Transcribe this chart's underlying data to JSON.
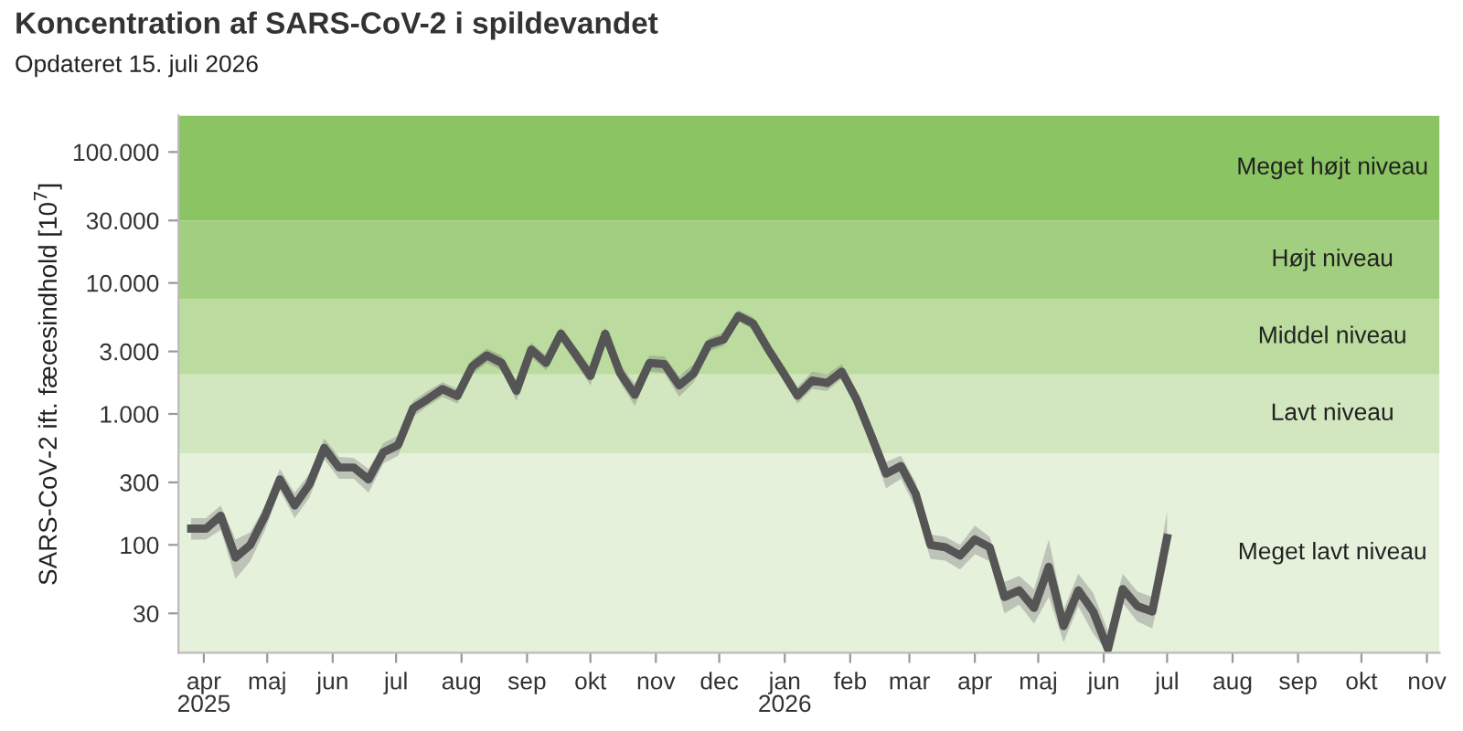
{
  "chart_data": {
    "type": "line",
    "title": "Koncentration af SARS-CoV-2 i spildevandet",
    "subtitle": "Opdateret 15. juli 2026",
    "ylabel": "SARS-CoV-2 ift. fæcesindhold [10$^{7}$]",
    "x": [
      "2025-03-26",
      "2025-04-02",
      "2025-04-09",
      "2025-04-16",
      "2025-04-23",
      "2025-04-30",
      "2025-05-07",
      "2025-05-14",
      "2025-05-21",
      "2025-05-28",
      "2025-06-04",
      "2025-06-11",
      "2025-06-18",
      "2025-06-25",
      "2025-07-02",
      "2025-07-09",
      "2025-07-16",
      "2025-07-23",
      "2025-07-30",
      "2025-08-06",
      "2025-08-13",
      "2025-08-20",
      "2025-08-27",
      "2025-09-03",
      "2025-09-10",
      "2025-09-17",
      "2025-09-24",
      "2025-10-01",
      "2025-10-08",
      "2025-10-15",
      "2025-10-22",
      "2025-10-29",
      "2025-11-05",
      "2025-11-12",
      "2025-11-19",
      "2025-11-26",
      "2025-12-03",
      "2025-12-10",
      "2025-12-17",
      "2025-12-24",
      "2025-12-31",
      "2026-01-07",
      "2026-01-14",
      "2026-01-21",
      "2026-01-28",
      "2026-02-04",
      "2026-02-11",
      "2026-02-18",
      "2026-02-25",
      "2026-03-04",
      "2026-03-11",
      "2026-03-18",
      "2026-03-25",
      "2026-04-01",
      "2026-04-08",
      "2026-04-15",
      "2026-04-22",
      "2026-04-29",
      "2026-05-06",
      "2026-05-13",
      "2026-05-20",
      "2026-05-27",
      "2026-06-03",
      "2026-06-10",
      "2026-06-17",
      "2026-06-24",
      "2026-07-01"
    ],
    "series": [
      {
        "color": "#555555",
        "values": [
          133,
          133,
          167,
          80,
          100,
          167,
          316,
          200,
          290,
          550,
          390,
          390,
          316,
          510,
          580,
          1100,
          1300,
          1550,
          1370,
          2300,
          2800,
          2450,
          1500,
          3100,
          2450,
          4100,
          2850,
          1950,
          4100,
          2050,
          1400,
          2450,
          2400,
          1650,
          2050,
          3400,
          3700,
          5600,
          4900,
          3150,
          2100,
          1380,
          1800,
          1720,
          2100,
          1290,
          680,
          350,
          400,
          245,
          100,
          96,
          83,
          110,
          96,
          40,
          45,
          33,
          68,
          24,
          45,
          31,
          16,
          46,
          34,
          31,
          113
        ],
        "lower": [
          110,
          110,
          130,
          55,
          75,
          130,
          260,
          160,
          230,
          450,
          320,
          320,
          250,
          420,
          480,
          950,
          1150,
          1350,
          1200,
          2000,
          2450,
          2150,
          1250,
          2700,
          2150,
          3600,
          2450,
          1650,
          3600,
          1750,
          1150,
          2100,
          2050,
          1350,
          1750,
          3000,
          3300,
          5100,
          4400,
          2800,
          1850,
          1200,
          1550,
          1500,
          1850,
          1100,
          560,
          270,
          320,
          190,
          78,
          76,
          65,
          85,
          75,
          30,
          35,
          25,
          40,
          18,
          34,
          21,
          15,
          36,
          26,
          23,
          75
        ],
        "upper": [
          160,
          160,
          200,
          110,
          125,
          200,
          380,
          250,
          350,
          650,
          470,
          460,
          380,
          600,
          680,
          1250,
          1500,
          1750,
          1550,
          2600,
          3150,
          2800,
          1800,
          3500,
          2800,
          4600,
          3250,
          2300,
          4600,
          2400,
          1700,
          2800,
          2750,
          1950,
          2400,
          3800,
          4200,
          6200,
          5500,
          3550,
          2400,
          1600,
          2100,
          2000,
          2400,
          1500,
          820,
          430,
          480,
          300,
          120,
          115,
          100,
          140,
          115,
          52,
          58,
          46,
          110,
          32,
          60,
          43,
          22,
          60,
          44,
          40,
          180
        ]
      }
    ],
    "xlim": [
      "2025-03-20",
      "2026-11-07"
    ],
    "xticks": [
      {
        "value": "2025-04-01",
        "label": "apr\n2025"
      },
      {
        "value": "2025-05-01",
        "label": "maj"
      },
      {
        "value": "2025-06-01",
        "label": "jun"
      },
      {
        "value": "2025-07-01",
        "label": "jul"
      },
      {
        "value": "2025-08-01",
        "label": "aug"
      },
      {
        "value": "2025-09-01",
        "label": "sep"
      },
      {
        "value": "2025-10-01",
        "label": "okt"
      },
      {
        "value": "2025-11-01",
        "label": "nov"
      },
      {
        "value": "2025-12-01",
        "label": "dec"
      },
      {
        "value": "2026-01-01",
        "label": "jan\n2026"
      },
      {
        "value": "2026-02-01",
        "label": "feb"
      },
      {
        "value": "2026-03-01",
        "label": "mar"
      },
      {
        "value": "2026-04-01",
        "label": "apr"
      },
      {
        "value": "2026-05-01",
        "label": "maj"
      },
      {
        "value": "2026-06-01",
        "label": "jun"
      },
      {
        "value": "2026-07-01",
        "label": "jul"
      },
      {
        "value": "2026-08-01",
        "label": "aug"
      },
      {
        "value": "2026-09-01",
        "label": "sep"
      },
      {
        "value": "2026-10-01",
        "label": "okt"
      },
      {
        "value": "2026-11-01",
        "label": "nov"
      }
    ],
    "log": true,
    "ylim": [
      15,
      190000
    ],
    "yticks": [
      30,
      100,
      300,
      {
        "value": 1000,
        "label": "1.000"
      },
      {
        "value": 3000,
        "label": "3.000"
      },
      {
        "value": 10000,
        "label": "10.000"
      },
      {
        "value": 30000,
        "label": "30.000"
      },
      {
        "value": 100000,
        "label": "100.000"
      }
    ],
    "bands": [
      {
        "axis": "y",
        "from": 15,
        "to": 500,
        "label": "Meget lavt niveau",
        "color": "#e6f1dc"
      },
      {
        "axis": "y",
        "from": 500,
        "to": 2000,
        "label": "Lavt niveau",
        "color": "#d2e7c0"
      },
      {
        "axis": "y",
        "from": 2000,
        "to": 7500,
        "label": "Middel niveau",
        "color": "#bbdc9e"
      },
      {
        "axis": "y",
        "from": 7500,
        "to": 30000,
        "label": "Højt niveau",
        "color": "#a2cf7f"
      },
      {
        "axis": "y",
        "from": 30000,
        "to": 190000,
        "label": "Meget højt niveau",
        "color": "#8bc462"
      }
    ],
    "line_style": "solid",
    "marker": "none",
    "grid": false,
    "legend": false
  }
}
